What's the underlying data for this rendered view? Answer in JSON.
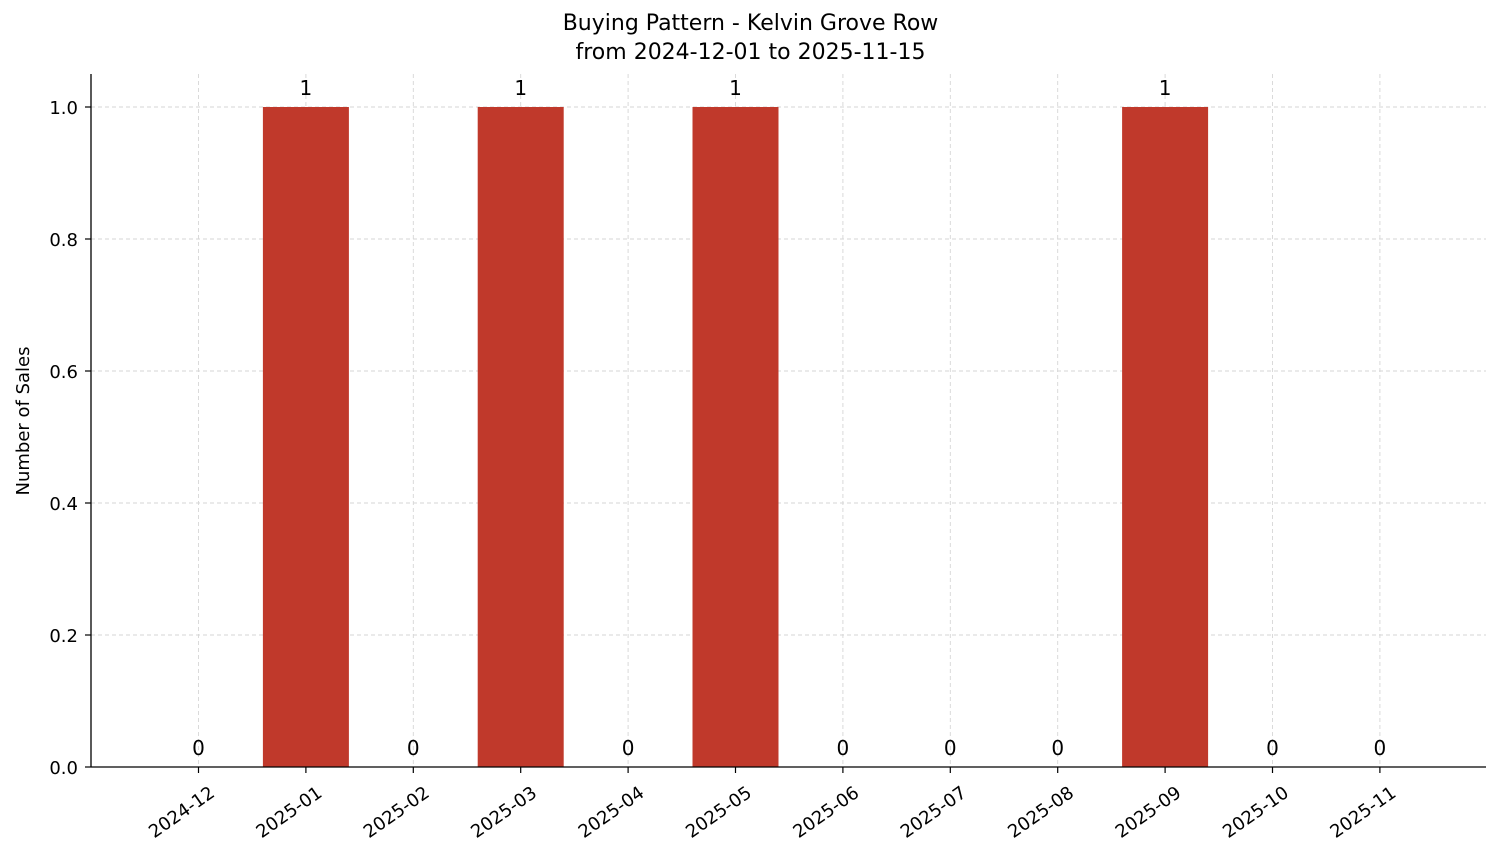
{
  "chart_data": {
    "type": "bar",
    "title": "Buying Pattern - Kelvin Grove Row",
    "subtitle": "from 2024-12-01 to 2025-11-15",
    "xlabel": "",
    "ylabel": "Number of Sales",
    "categories": [
      "2024-12",
      "2025-01",
      "2025-02",
      "2025-03",
      "2025-04",
      "2025-05",
      "2025-06",
      "2025-07",
      "2025-08",
      "2025-09",
      "2025-10",
      "2025-11"
    ],
    "values": [
      0,
      1,
      0,
      1,
      0,
      1,
      0,
      0,
      0,
      1,
      0,
      0
    ],
    "data_labels": [
      "0",
      "1",
      "0",
      "1",
      "0",
      "1",
      "0",
      "0",
      "0",
      "1",
      "0",
      "0"
    ],
    "ylim": [
      0,
      1.05
    ],
    "yticks": [
      0.0,
      0.2,
      0.4,
      0.6,
      0.8,
      1.0
    ],
    "ytick_labels": [
      "0.0",
      "0.2",
      "0.4",
      "0.6",
      "0.8",
      "1.0"
    ],
    "grid": true,
    "legend": "none",
    "bar_color": "#c0392b"
  }
}
